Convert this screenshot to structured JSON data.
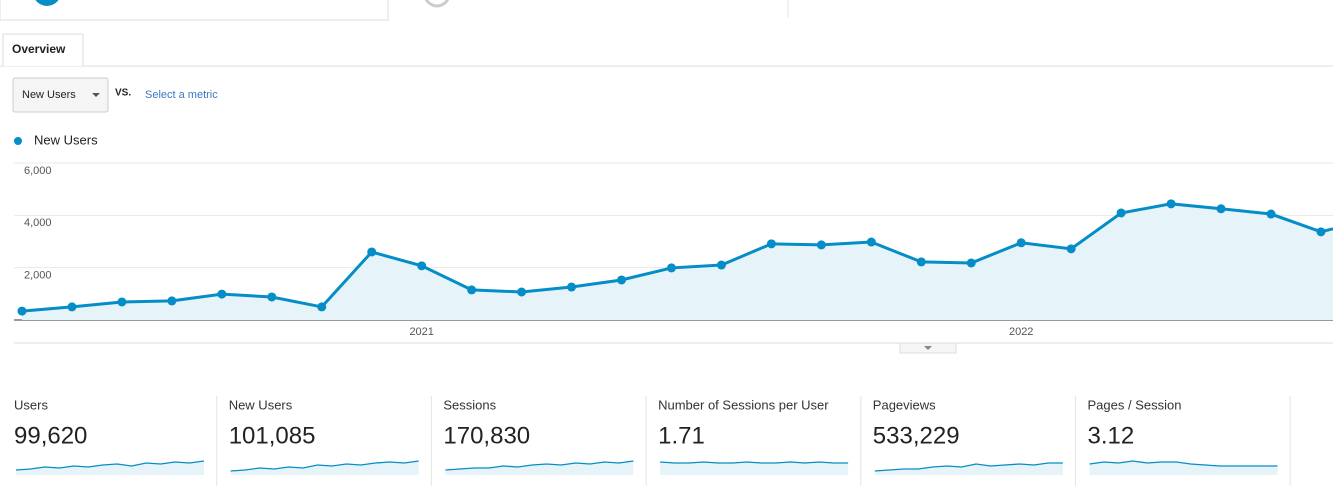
{
  "tab": "Overview",
  "metric_selector": {
    "value": "New Users",
    "vs": "VS.",
    "link": "Select a metric"
  },
  "chart_data": {
    "type": "line",
    "categories": [
      null,
      null,
      null,
      null,
      null,
      null,
      null,
      null,
      "2021",
      null,
      null,
      null,
      null,
      null,
      null,
      null,
      null,
      null,
      null,
      null,
      "2022",
      null,
      null,
      null,
      null,
      null,
      null
    ],
    "series": [
      {
        "name": "New Users",
        "color": "#058dc7",
        "values": [
          340,
          500,
          690,
          730,
          990,
          880,
          500,
          2600,
          2070,
          1150,
          1070,
          1260,
          1530,
          1990,
          2100,
          2910,
          2870,
          2980,
          2220,
          2180,
          2950,
          2720,
          4090,
          4440,
          4250,
          4050,
          3370
        ]
      }
    ],
    "ylim": [
      0,
      6000
    ],
    "yticks": [
      {
        "value": 2000,
        "label": "2,000"
      },
      {
        "value": 4000,
        "label": "4,000"
      },
      {
        "value": 6000,
        "label": "6,000"
      }
    ],
    "grid": true,
    "area": true
  },
  "metrics": [
    {
      "label": "Users",
      "value": "99,620"
    },
    {
      "label": "New Users",
      "value": "101,085"
    },
    {
      "label": "Sessions",
      "value": "170,830"
    },
    {
      "label": "Number of Sessions per User",
      "value": "1.71"
    },
    {
      "label": "Pageviews",
      "value": "533,229"
    },
    {
      "label": "Pages / Session",
      "value": "3.12"
    }
  ]
}
